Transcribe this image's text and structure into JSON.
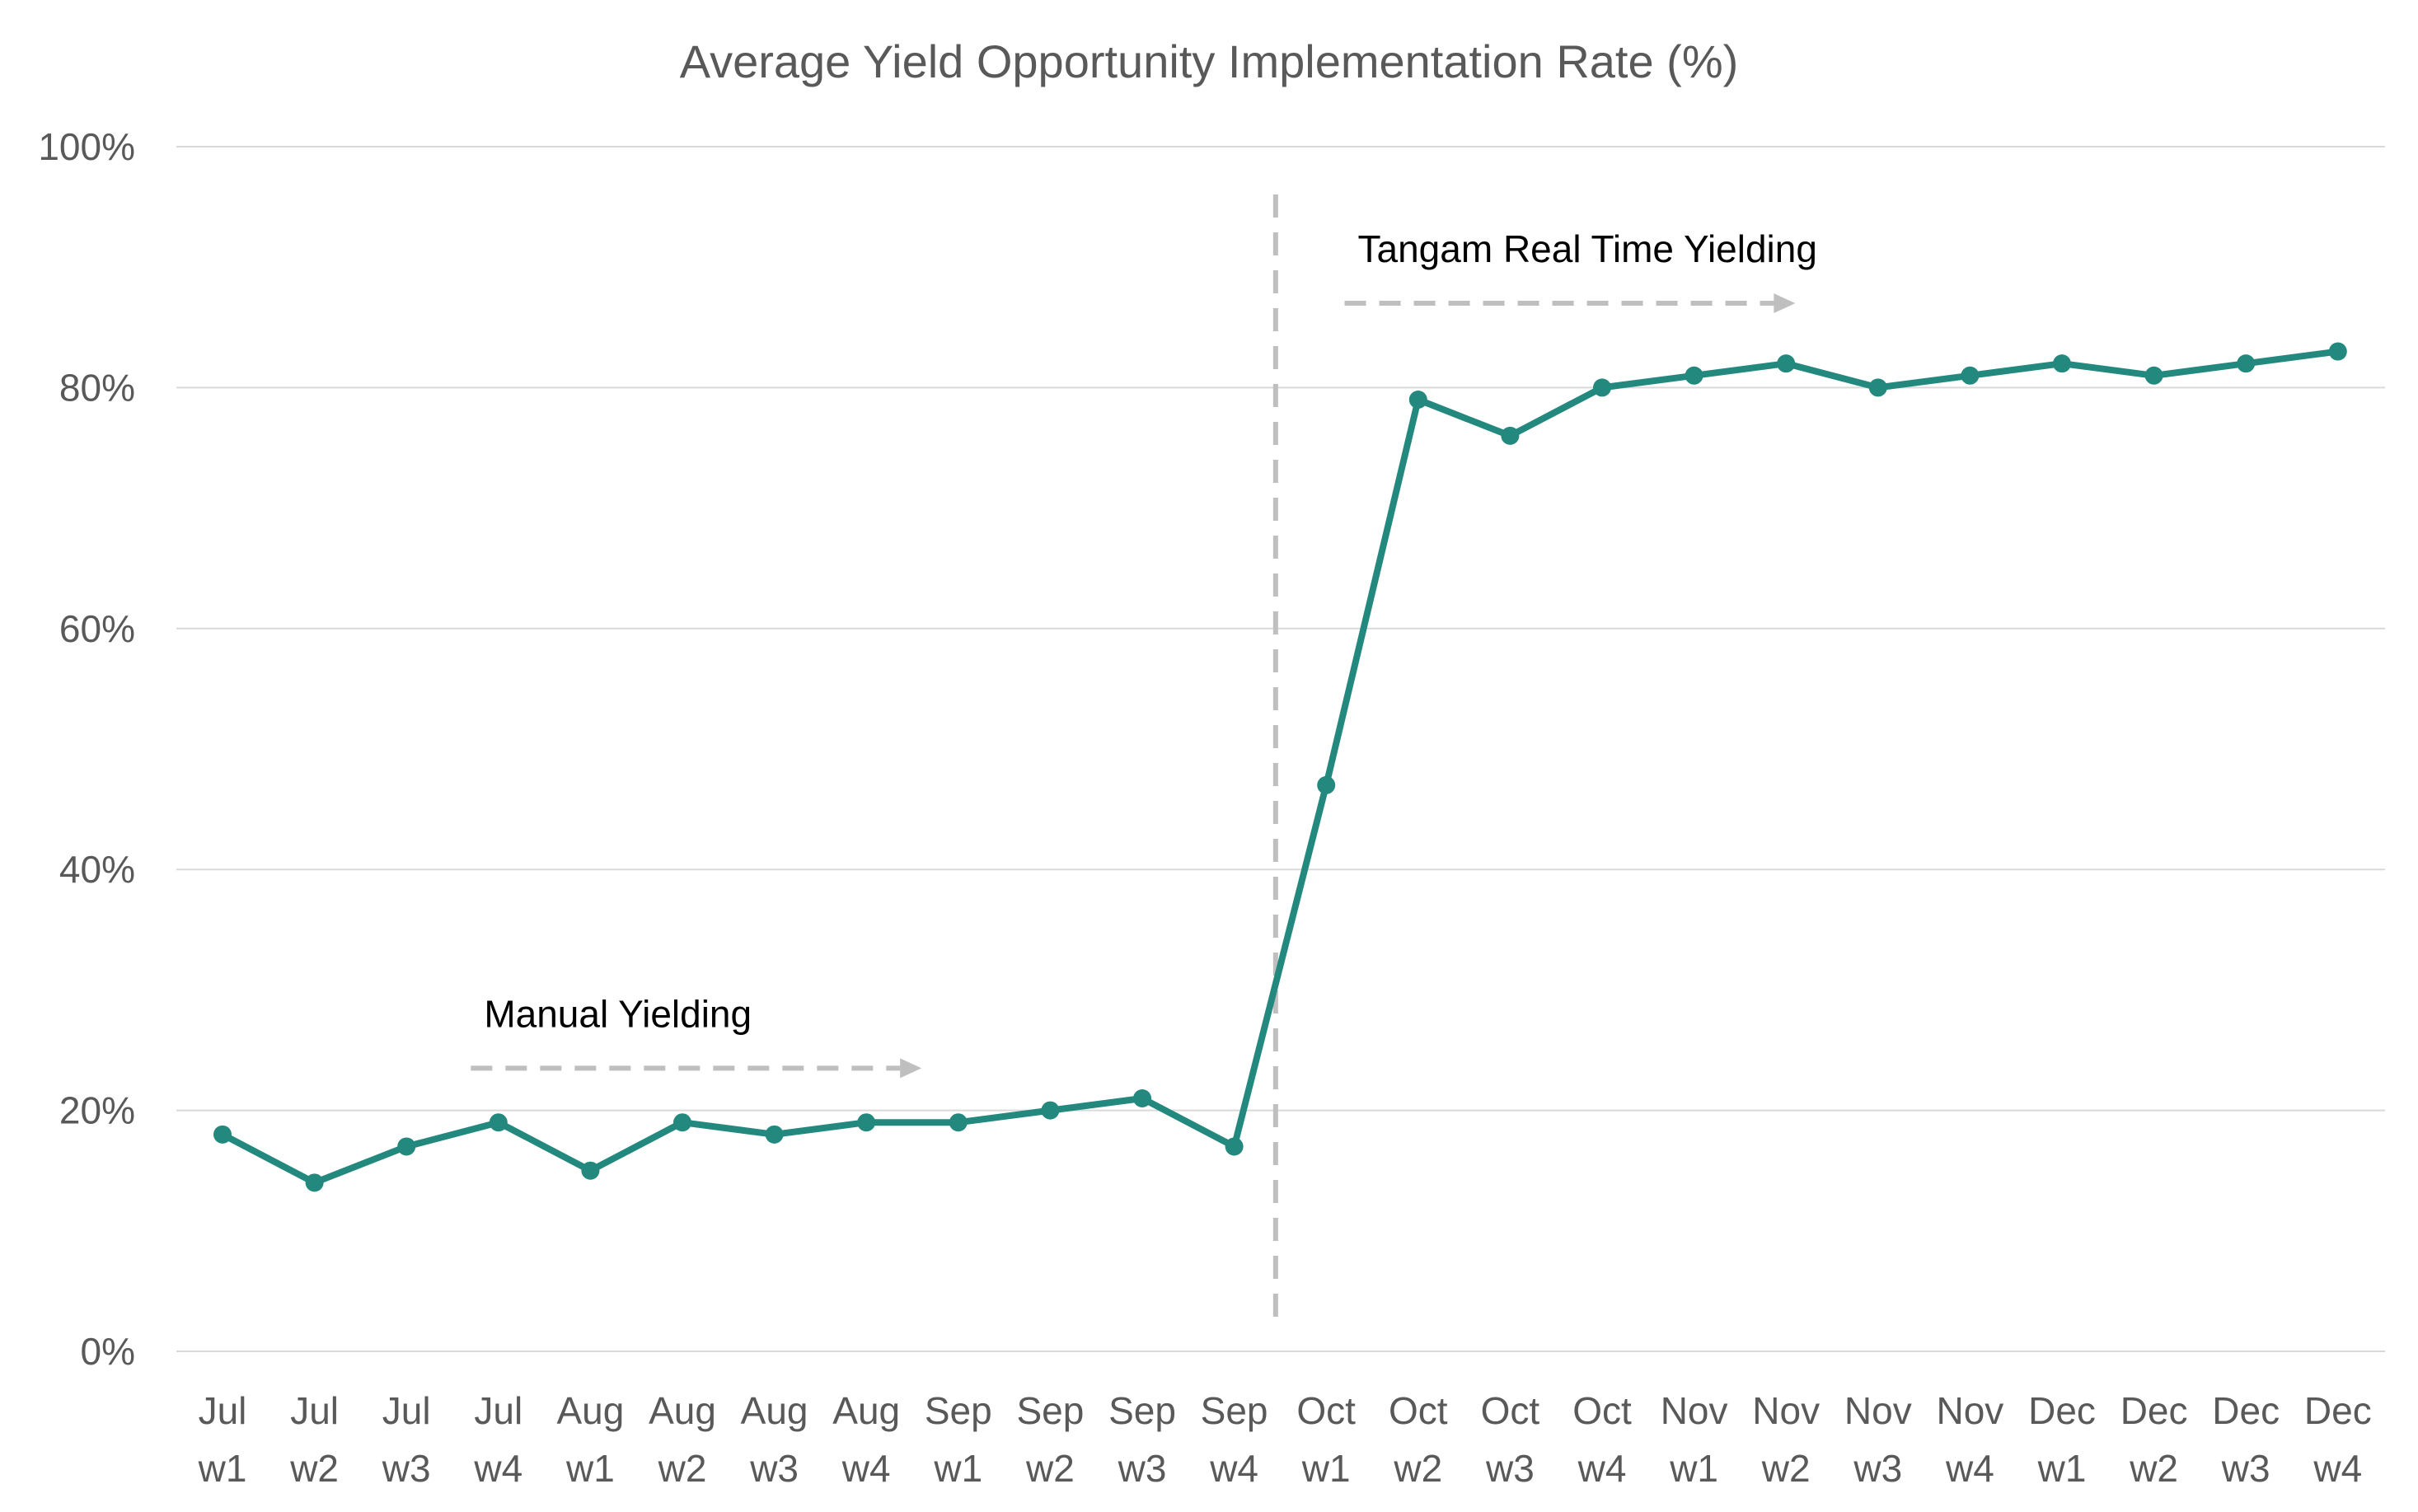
{
  "chart_data": {
    "type": "line",
    "title": "Average Yield Opportunity Implementation Rate (%)",
    "xlabel": "",
    "ylabel": "",
    "ylim": [
      0,
      100
    ],
    "yticks": [
      "0%",
      "20%",
      "40%",
      "60%",
      "80%",
      "100%"
    ],
    "ytick_values": [
      0,
      20,
      40,
      60,
      80,
      100
    ],
    "grid": true,
    "categories": [
      [
        "Jul",
        "w1"
      ],
      [
        "Jul",
        "w2"
      ],
      [
        "Jul",
        "w3"
      ],
      [
        "Jul",
        "w4"
      ],
      [
        "Aug",
        "w1"
      ],
      [
        "Aug",
        "w2"
      ],
      [
        "Aug",
        "w3"
      ],
      [
        "Aug",
        "w4"
      ],
      [
        "Sep",
        "w1"
      ],
      [
        "Sep",
        "w2"
      ],
      [
        "Sep",
        "w3"
      ],
      [
        "Sep",
        "w4"
      ],
      [
        "Oct",
        "w1"
      ],
      [
        "Oct",
        "w2"
      ],
      [
        "Oct",
        "w3"
      ],
      [
        "Oct",
        "w4"
      ],
      [
        "Nov",
        "w1"
      ],
      [
        "Nov",
        "w2"
      ],
      [
        "Nov",
        "w3"
      ],
      [
        "Nov",
        "w4"
      ],
      [
        "Dec",
        "w1"
      ],
      [
        "Dec",
        "w2"
      ],
      [
        "Dec",
        "w3"
      ],
      [
        "Dec",
        "w4"
      ]
    ],
    "series": [
      {
        "values": [
          18,
          14,
          17,
          19,
          15,
          19,
          18,
          19,
          19,
          20,
          21,
          17,
          47,
          79,
          76,
          80,
          81,
          82,
          80,
          81,
          82,
          81,
          82,
          83
        ],
        "color": "#23897e"
      }
    ],
    "annotations": [
      {
        "text": "Manual Yielding",
        "arrow_from_index": 2.7,
        "arrow_to_index": 7.6,
        "arrow_y": 23.5
      },
      {
        "text": "Tangam Real Time Yielding",
        "arrow_from_index": 12.2,
        "arrow_to_index": 17.1,
        "arrow_y": 87
      }
    ],
    "divider_after_index": 11,
    "divider_color": "#bfbfbf"
  }
}
